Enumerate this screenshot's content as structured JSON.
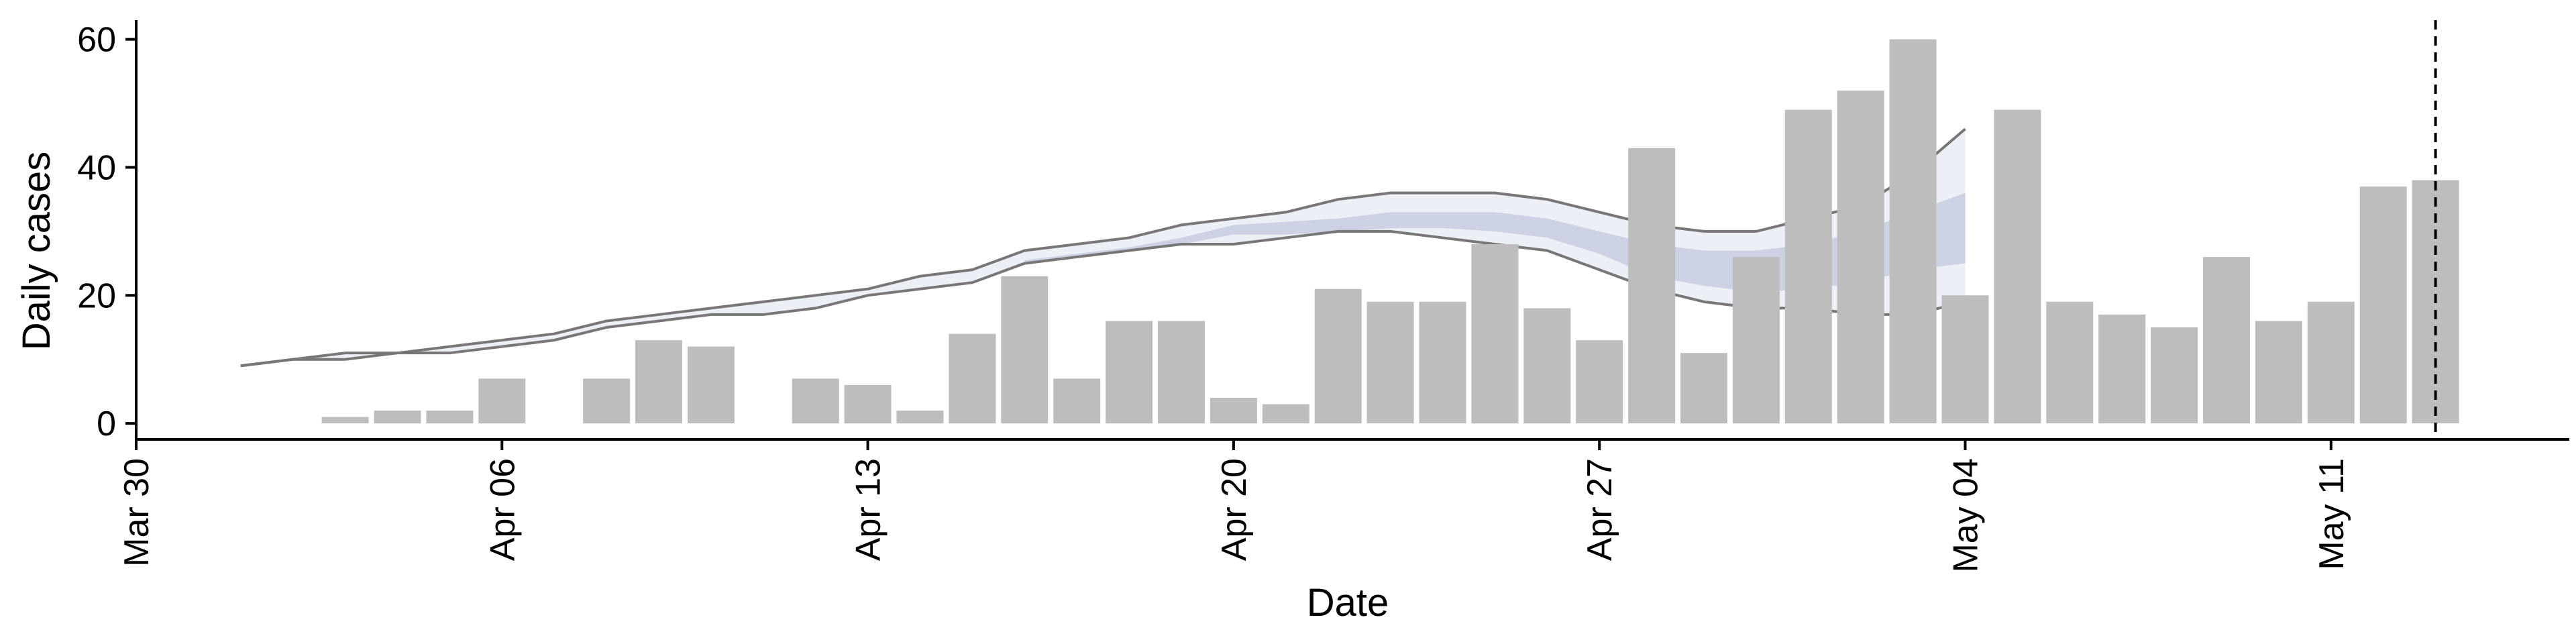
{
  "chart_data": {
    "type": "bar",
    "xlabel": "Date",
    "ylabel": "Daily cases",
    "ylim": [
      -2.5,
      63
    ],
    "yticks": [
      0,
      20,
      40,
      60
    ],
    "xlim": [
      0,
      59
    ],
    "xticks": [
      {
        "day": 0,
        "label": "Mar 30"
      },
      {
        "day": 7,
        "label": "Apr 06"
      },
      {
        "day": 14,
        "label": "Apr 13"
      },
      {
        "day": 21,
        "label": "Apr 20"
      },
      {
        "day": 28,
        "label": "Apr 27"
      },
      {
        "day": 35,
        "label": "May 04"
      },
      {
        "day": 42,
        "label": "May 11"
      }
    ],
    "grid": false,
    "bar_color": "#bdbdbd",
    "bars": {
      "start_day": 4,
      "values": [
        1,
        2,
        2,
        7,
        0,
        7,
        13,
        12,
        0,
        7,
        6,
        2,
        14,
        23,
        7,
        16,
        16,
        4,
        3,
        21,
        19,
        19,
        28,
        18,
        13,
        43,
        11,
        26,
        49,
        52,
        60,
        20,
        49,
        19,
        17,
        15,
        26,
        16,
        19,
        37,
        38
      ]
    },
    "reference_line": {
      "day": 44,
      "style": "dashed",
      "color": "#000000"
    },
    "estimate_band": {
      "x": [
        2,
        3,
        4,
        5,
        6,
        7,
        8,
        9,
        10,
        11,
        12,
        13,
        14,
        15,
        16,
        17,
        18,
        19,
        20,
        21,
        22,
        23,
        24,
        25,
        26,
        27,
        28,
        29,
        30,
        31,
        32,
        33,
        34,
        35
      ],
      "upper": [
        9,
        10,
        11,
        11,
        12,
        13,
        14,
        16,
        17,
        18,
        19,
        20,
        21,
        23,
        24,
        27,
        28,
        29,
        31,
        32,
        33,
        35,
        36,
        36,
        36,
        35,
        33,
        31,
        30,
        30,
        32,
        34,
        39,
        46
      ],
      "lower": [
        9,
        10,
        10,
        11,
        11,
        12,
        13,
        15,
        16,
        17,
        17,
        18,
        20,
        21,
        22,
        25,
        26,
        27,
        28,
        28,
        29,
        30,
        30,
        29,
        28,
        27,
        24,
        21,
        19,
        18,
        18,
        17,
        17,
        19
      ],
      "inner_upper": [
        null,
        null,
        null,
        null,
        null,
        null,
        null,
        null,
        null,
        null,
        null,
        null,
        null,
        null,
        null,
        25.5,
        26.5,
        27.5,
        29,
        31,
        31.5,
        32,
        33,
        33,
        33,
        32,
        30,
        28,
        27,
        27,
        28,
        30,
        33,
        36
      ],
      "inner_lower": [
        null,
        null,
        null,
        null,
        null,
        null,
        null,
        null,
        null,
        null,
        null,
        null,
        null,
        null,
        null,
        25,
        26,
        27,
        28,
        29.5,
        29.5,
        30,
        30.5,
        30.5,
        30,
        29,
        26.5,
        23,
        21.5,
        20.5,
        21,
        22,
        24,
        25
      ],
      "fill_color": "#eceff6",
      "inner_color": "#c7cddf",
      "line_color": "#777777"
    }
  }
}
